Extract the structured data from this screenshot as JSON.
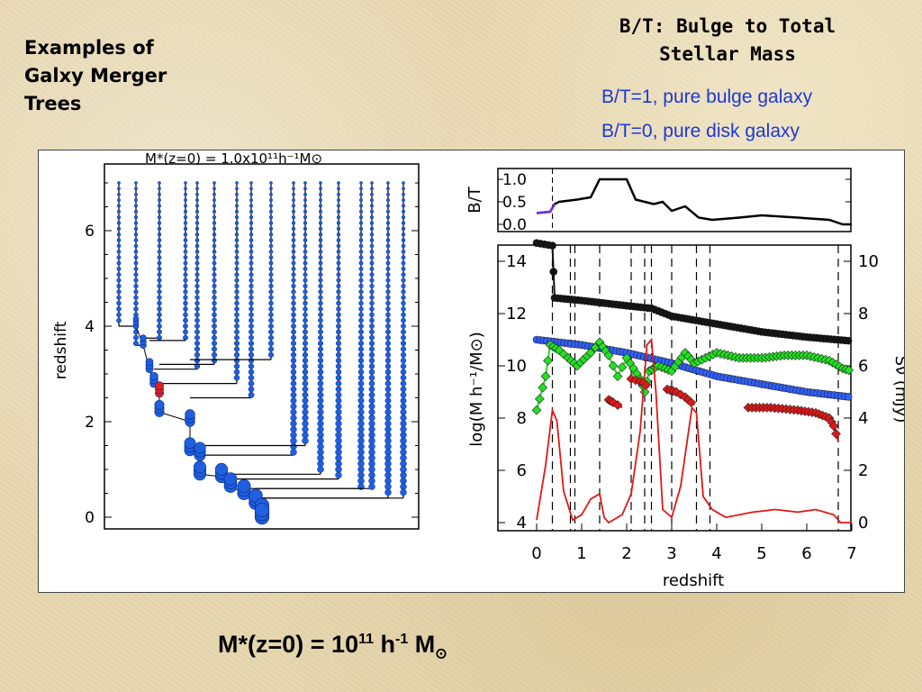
{
  "slide": {
    "title_lines": [
      "Examples of",
      "Galxy Merger",
      "Trees"
    ],
    "bt_heading_lines": [
      "B/T: Bulge to Total",
      "Stellar Mass"
    ],
    "bt_notes": [
      "B/T=1, pure bulge galaxy",
      "B/T=0, pure disk galaxy"
    ],
    "footer": {
      "prefix": "M",
      "star": "*",
      "mid": "(z=0) = 10",
      "exp1": "11",
      "h": " h",
      "exp2": "-1",
      "m": " M",
      "sun": "⊙"
    }
  },
  "colors": {
    "tree_node": "#1f5fe0",
    "merger_node": "#e02020",
    "stellar": "#3060ff",
    "halo": "#111111",
    "gas": "#22e022",
    "bh": "#e01818",
    "flux": "#e01818",
    "bt_early": "#6a2be0"
  },
  "figure_tree": {
    "title": "M*(z=0) = 1.0x10¹¹h⁻¹M⊙",
    "ylabel": "redshift",
    "yticks": [
      "6",
      "4",
      "2",
      "0"
    ],
    "branches": [
      {
        "x": 131,
        "z_top": 7.0,
        "z_bottom": 4.0,
        "merge_x": 150
      },
      {
        "x": 150,
        "z_top": 7.0,
        "z_bottom": 3.6,
        "merge_x": 158
      },
      {
        "x": 176,
        "z_top": 7.0,
        "z_bottom": 3.75,
        "merge_x": 158
      },
      {
        "x": 205,
        "z_top": 7.0,
        "z_bottom": 3.7,
        "merge_x": 165
      },
      {
        "x": 218,
        "z_top": 7.0,
        "z_bottom": 3.1,
        "merge_x": 170
      },
      {
        "x": 237,
        "z_top": 7.0,
        "z_bottom": 3.2,
        "merge_x": 176
      },
      {
        "x": 262,
        "z_top": 7.0,
        "z_bottom": 2.8,
        "merge_x": 176
      },
      {
        "x": 278,
        "z_top": 7.0,
        "z_bottom": 2.5,
        "merge_x": 210
      },
      {
        "x": 300,
        "z_top": 7.0,
        "z_bottom": 3.3,
        "merge_x": 210
      },
      {
        "x": 325,
        "z_top": 7.0,
        "z_bottom": 1.3,
        "merge_x": 221
      },
      {
        "x": 338,
        "z_top": 7.0,
        "z_bottom": 1.5,
        "merge_x": 221
      },
      {
        "x": 355,
        "z_top": 7.0,
        "z_bottom": 0.9,
        "merge_x": 245
      },
      {
        "x": 375,
        "z_top": 7.0,
        "z_bottom": 0.8,
        "merge_x": 255
      },
      {
        "x": 400,
        "z_top": 7.0,
        "z_bottom": 0.6,
        "merge_x": 270
      },
      {
        "x": 412,
        "z_top": 7.0,
        "z_bottom": 0.6,
        "merge_x": 283
      },
      {
        "x": 430,
        "z_top": 7.0,
        "z_bottom": 0.4,
        "merge_x": 290
      },
      {
        "x": 447,
        "z_top": 7.0,
        "z_bottom": 0.4,
        "merge_x": 290
      }
    ],
    "main_branch": [
      {
        "z": 4.0,
        "x": 150
      },
      {
        "z": 3.6,
        "x": 158
      },
      {
        "z": 3.1,
        "x": 165
      },
      {
        "z": 2.8,
        "x": 170
      },
      {
        "z": 2.6,
        "x": 176
      },
      {
        "z": 2.2,
        "x": 176
      },
      {
        "z": 2.0,
        "x": 210
      },
      {
        "z": 1.4,
        "x": 210
      },
      {
        "z": 1.3,
        "x": 221
      },
      {
        "z": 0.9,
        "x": 221
      },
      {
        "z": 0.85,
        "x": 245
      },
      {
        "z": 0.65,
        "x": 255
      },
      {
        "z": 0.5,
        "x": 270
      },
      {
        "z": 0.3,
        "x": 283
      },
      {
        "z": 0.1,
        "x": 290
      },
      {
        "z": 0.0,
        "x": 290
      }
    ],
    "merger_z": 2.5
  },
  "figure_bt": {
    "ylabel": "B/T",
    "yticks": [
      "1.0",
      "0.5",
      "0.0"
    ],
    "points": [
      [
        0.0,
        0.25
      ],
      [
        0.3,
        0.28
      ],
      [
        0.4,
        0.45
      ],
      [
        0.5,
        0.5
      ],
      [
        0.9,
        0.55
      ],
      [
        1.2,
        0.6
      ],
      [
        1.4,
        1.0
      ],
      [
        2.0,
        1.0
      ],
      [
        2.2,
        0.55
      ],
      [
        2.6,
        0.45
      ],
      [
        2.8,
        0.5
      ],
      [
        3.0,
        0.3
      ],
      [
        3.3,
        0.4
      ],
      [
        3.6,
        0.15
      ],
      [
        3.9,
        0.1
      ],
      [
        4.5,
        0.15
      ],
      [
        5.0,
        0.2
      ],
      [
        5.8,
        0.15
      ],
      [
        6.5,
        0.1
      ],
      [
        6.8,
        0.0
      ],
      [
        7.0,
        0.0
      ]
    ]
  },
  "figure_main": {
    "xlabel": "redshift",
    "ylabel_left": "log(M h⁻¹/M⊙)",
    "ylabel_right": "Sν (mJy)",
    "xticks": [
      "0",
      "1",
      "2",
      "3",
      "4",
      "5",
      "6",
      "7"
    ],
    "yticks_left": [
      "14",
      "12",
      "10",
      "8",
      "6",
      "4"
    ],
    "yticks_right": [
      "10",
      "8",
      "6",
      "4",
      "2",
      "0"
    ],
    "dashed_z": [
      0.35,
      0.75,
      0.85,
      1.4,
      2.1,
      2.4,
      2.55,
      3.0,
      3.55,
      3.85,
      6.7
    ],
    "halo": [
      [
        0,
        14.7
      ],
      [
        0.35,
        14.6
      ],
      [
        0.4,
        12.6
      ],
      [
        1.0,
        12.5
      ],
      [
        2.0,
        12.3
      ],
      [
        2.55,
        12.2
      ],
      [
        3.0,
        11.9
      ],
      [
        4.0,
        11.6
      ],
      [
        5.0,
        11.3
      ],
      [
        6.0,
        11.1
      ],
      [
        7.0,
        10.95
      ]
    ],
    "stellar": [
      [
        0,
        11.0
      ],
      [
        1.0,
        10.8
      ],
      [
        2.0,
        10.5
      ],
      [
        3.0,
        10.1
      ],
      [
        4.0,
        9.6
      ],
      [
        5.0,
        9.3
      ],
      [
        6.0,
        9.0
      ],
      [
        7.0,
        8.8
      ]
    ],
    "gas": [
      [
        0,
        8.3
      ],
      [
        0.2,
        9.6
      ],
      [
        0.3,
        10.8
      ],
      [
        0.5,
        10.6
      ],
      [
        0.7,
        10.3
      ],
      [
        0.9,
        10.0
      ],
      [
        1.2,
        10.5
      ],
      [
        1.4,
        10.9
      ],
      [
        1.6,
        10.4
      ],
      [
        1.8,
        9.6
      ],
      [
        2.0,
        10.3
      ],
      [
        2.3,
        9.5
      ],
      [
        2.4,
        9.0
      ],
      [
        2.5,
        9.8
      ],
      [
        2.7,
        10.0
      ],
      [
        3.0,
        9.8
      ],
      [
        3.3,
        10.5
      ],
      [
        3.5,
        10.1
      ],
      [
        4.0,
        10.5
      ],
      [
        4.5,
        10.3
      ],
      [
        5.0,
        10.3
      ],
      [
        5.5,
        10.4
      ],
      [
        6.0,
        10.4
      ],
      [
        6.5,
        10.2
      ],
      [
        6.8,
        9.9
      ],
      [
        7.0,
        9.8
      ]
    ],
    "bh": [
      [
        [
          1.6,
          8.7
        ],
        [
          1.7,
          8.6
        ],
        [
          1.9,
          8.4
        ]
      ],
      [
        [
          2.1,
          9.5
        ],
        [
          2.3,
          9.4
        ],
        [
          2.5,
          9.2
        ]
      ],
      [
        [
          2.9,
          9.1
        ],
        [
          3.1,
          9.0
        ],
        [
          3.3,
          8.8
        ],
        [
          3.5,
          8.5
        ]
      ],
      [
        [
          4.7,
          8.4
        ],
        [
          5.2,
          8.4
        ],
        [
          5.8,
          8.3
        ],
        [
          6.2,
          8.2
        ],
        [
          6.5,
          8.0
        ],
        [
          6.6,
          7.7
        ],
        [
          6.7,
          7.1
        ]
      ]
    ],
    "flux": [
      [
        0,
        0.1
      ],
      [
        0.2,
        2.2
      ],
      [
        0.35,
        4.3
      ],
      [
        0.45,
        3.9
      ],
      [
        0.6,
        1.2
      ],
      [
        0.8,
        0.1
      ],
      [
        1.0,
        0.3
      ],
      [
        1.2,
        0.9
      ],
      [
        1.4,
        1.1
      ],
      [
        1.5,
        0.2
      ],
      [
        1.6,
        0.0
      ],
      [
        1.9,
        0.3
      ],
      [
        2.1,
        1.1
      ],
      [
        2.3,
        3.5
      ],
      [
        2.45,
        6.8
      ],
      [
        2.55,
        7.0
      ],
      [
        2.65,
        5.0
      ],
      [
        2.8,
        0.5
      ],
      [
        3.0,
        0.2
      ],
      [
        3.2,
        1.4
      ],
      [
        3.45,
        4.4
      ],
      [
        3.55,
        4.2
      ],
      [
        3.7,
        1.0
      ],
      [
        3.9,
        0.5
      ],
      [
        4.2,
        0.2
      ],
      [
        4.8,
        0.4
      ],
      [
        5.3,
        0.5
      ],
      [
        5.8,
        0.4
      ],
      [
        6.2,
        0.5
      ],
      [
        6.6,
        0.3
      ],
      [
        6.75,
        0.0
      ],
      [
        7.0,
        0.0
      ]
    ]
  }
}
